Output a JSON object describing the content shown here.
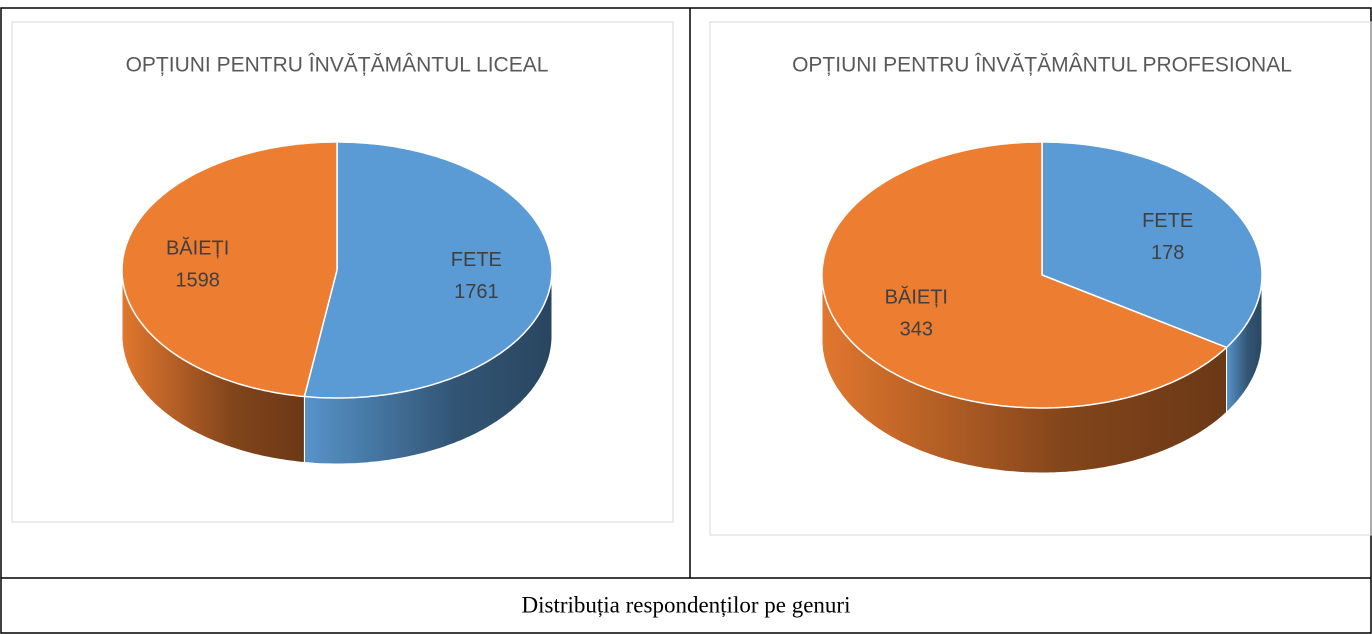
{
  "chart_data": [
    {
      "type": "pie",
      "title": "OPȚIUNI PENTRU ÎNVĂȚĂMÂNTUL LICEAL",
      "categories": [
        "FETE",
        "BĂIEȚI"
      ],
      "values": [
        1761,
        1598
      ],
      "colors": [
        "#5b9bd5",
        "#ed7d31"
      ]
    },
    {
      "type": "pie",
      "title": "OPȚIUNI PENTRU ÎNVĂȚĂMÂNTUL PROFESIONAL",
      "categories": [
        "FETE",
        "BĂIEȚI"
      ],
      "values": [
        178,
        343
      ],
      "colors": [
        "#5b9bd5",
        "#ed7d31"
      ]
    }
  ],
  "caption": "Distribuția respondenților pe genuri"
}
